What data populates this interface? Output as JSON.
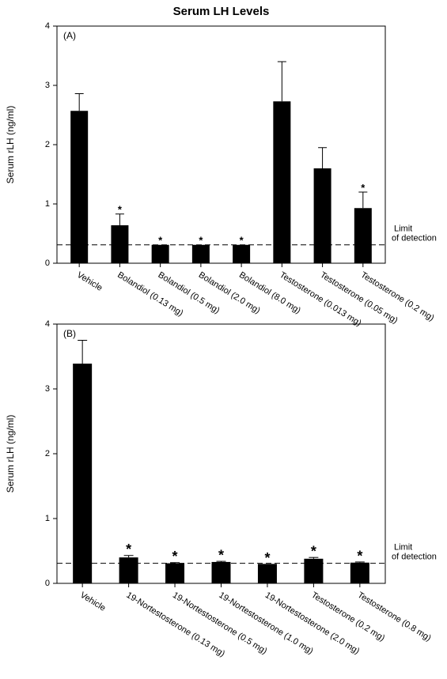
{
  "chart_data": [
    {
      "type": "bar",
      "title": "Serum LH Levels",
      "panel_label": "(A)",
      "y_label": "Serum rLH (ng/ml)",
      "categories": [
        "Vehicle",
        "Bolandiol (0.13 mg)",
        "Bolandiol (0.5 mg)",
        "Bolandiol (2.0 mg)",
        "Bolandiol (8.0 mg)",
        "Testosterone (0.013 mg)",
        "Testosterone (0.05 mg)",
        "Testosterone (0.2 mg)"
      ],
      "values": [
        2.57,
        0.64,
        0.31,
        0.31,
        0.31,
        2.73,
        1.6,
        0.93
      ],
      "errors": [
        0.29,
        0.19,
        0,
        0,
        0,
        0.67,
        0.35,
        0.27
      ],
      "significance": [
        null,
        "*",
        "*",
        "*",
        "*",
        null,
        null,
        "*"
      ],
      "color": "#000000",
      "reference_line": {
        "value": 0.31,
        "label": [
          "Limit",
          "of detection"
        ]
      },
      "ylim": [
        0,
        4
      ],
      "yticks": [
        0,
        1,
        2,
        3,
        4
      ]
    },
    {
      "type": "bar",
      "panel_label": "(B)",
      "y_label": "Serum rLH (ng/ml)",
      "categories": [
        "Vehicle",
        "19-Nortestosterone (0.13 mg)",
        "19-Nortestosterone (0.5 mg)",
        "19-Nortestosterone (1.0 mg)",
        "19-Nortestosterone (2.0 mg)",
        "Testosterone (0.2 mg)",
        "Testosterone (0.8 mg)"
      ],
      "values": [
        3.39,
        0.4,
        0.31,
        0.33,
        0.3,
        0.38,
        0.32
      ],
      "errors": [
        0.36,
        0.03,
        0.01,
        0.01,
        0,
        0.02,
        0.01
      ],
      "significance": [
        null,
        "*",
        "*",
        "*",
        "*",
        "*",
        "*"
      ],
      "color": "#000000",
      "reference_line": {
        "value": 0.31,
        "label": [
          "Limit",
          "of detection"
        ]
      },
      "ylim": [
        0,
        4
      ],
      "yticks": [
        0,
        1,
        2,
        3,
        4
      ]
    }
  ]
}
